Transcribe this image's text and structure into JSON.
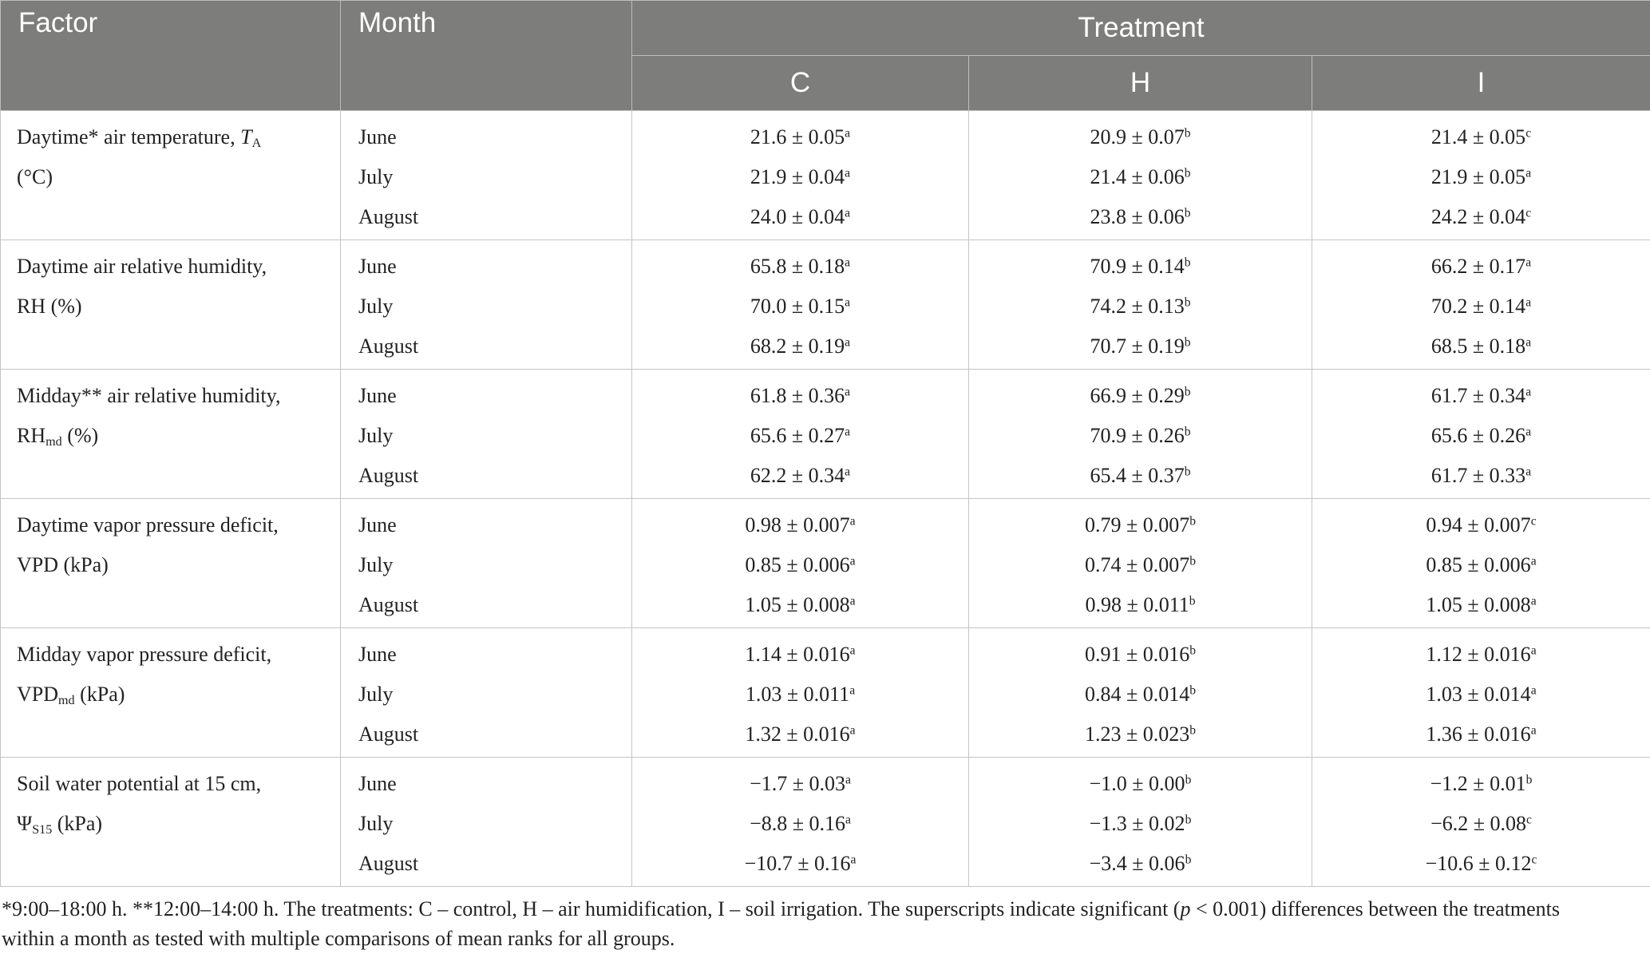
{
  "header": {
    "factor": "Factor",
    "month": "Month",
    "treatment": "Treatment",
    "columns": [
      "C",
      "H",
      "I"
    ]
  },
  "groups": [
    {
      "factor": [
        [
          {
            "t": "Daytime* air temperature, "
          },
          {
            "i": "T"
          },
          {
            "sub": "A"
          }
        ],
        [
          {
            "t": "(°C)"
          }
        ]
      ],
      "rows": [
        {
          "month": "June",
          "cells": [
            {
              "value": "21.6 ± 0.05",
              "sig": "a"
            },
            {
              "value": "20.9 ± 0.07",
              "sig": "b"
            },
            {
              "value": "21.4 ± 0.05",
              "sig": "c"
            }
          ]
        },
        {
          "month": "July",
          "cells": [
            {
              "value": "21.9 ± 0.04",
              "sig": "a"
            },
            {
              "value": "21.4 ± 0.06",
              "sig": "b"
            },
            {
              "value": "21.9 ± 0.05",
              "sig": "a"
            }
          ]
        },
        {
          "month": "August",
          "cells": [
            {
              "value": "24.0 ± 0.04",
              "sig": "a"
            },
            {
              "value": "23.8 ± 0.06",
              "sig": "b"
            },
            {
              "value": "24.2 ± 0.04",
              "sig": "c"
            }
          ]
        }
      ]
    },
    {
      "factor": [
        [
          {
            "t": "Daytime air relative humidity,"
          }
        ],
        [
          {
            "t": "RH (%)"
          }
        ]
      ],
      "rows": [
        {
          "month": "June",
          "cells": [
            {
              "value": "65.8 ± 0.18",
              "sig": "a"
            },
            {
              "value": "70.9 ± 0.14",
              "sig": "b"
            },
            {
              "value": "66.2 ± 0.17",
              "sig": "a"
            }
          ]
        },
        {
          "month": "July",
          "cells": [
            {
              "value": "70.0 ± 0.15",
              "sig": "a"
            },
            {
              "value": "74.2 ± 0.13",
              "sig": "b"
            },
            {
              "value": "70.2 ± 0.14",
              "sig": "a"
            }
          ]
        },
        {
          "month": "August",
          "cells": [
            {
              "value": "68.2 ± 0.19",
              "sig": "a"
            },
            {
              "value": "70.7 ± 0.19",
              "sig": "b"
            },
            {
              "value": "68.5 ± 0.18",
              "sig": "a"
            }
          ]
        }
      ]
    },
    {
      "factor": [
        [
          {
            "t": "Midday** air relative humidity,"
          }
        ],
        [
          {
            "t": "RH"
          },
          {
            "sub": "md"
          },
          {
            "t": " (%)"
          }
        ]
      ],
      "rows": [
        {
          "month": "June",
          "cells": [
            {
              "value": "61.8 ± 0.36",
              "sig": "a"
            },
            {
              "value": "66.9 ± 0.29",
              "sig": "b"
            },
            {
              "value": "61.7 ± 0.34",
              "sig": "a"
            }
          ]
        },
        {
          "month": "July",
          "cells": [
            {
              "value": "65.6 ± 0.27",
              "sig": "a"
            },
            {
              "value": "70.9 ± 0.26",
              "sig": "b"
            },
            {
              "value": "65.6 ± 0.26",
              "sig": "a"
            }
          ]
        },
        {
          "month": "August",
          "cells": [
            {
              "value": "62.2 ± 0.34",
              "sig": "a"
            },
            {
              "value": "65.4 ± 0.37",
              "sig": "b"
            },
            {
              "value": "61.7 ± 0.33",
              "sig": "a"
            }
          ]
        }
      ]
    },
    {
      "factor": [
        [
          {
            "t": "Daytime vapor pressure deficit,"
          }
        ],
        [
          {
            "t": "VPD (kPa)"
          }
        ]
      ],
      "rows": [
        {
          "month": "June",
          "cells": [
            {
              "value": "0.98 ± 0.007",
              "sig": "a"
            },
            {
              "value": "0.79 ± 0.007",
              "sig": "b"
            },
            {
              "value": "0.94 ± 0.007",
              "sig": "c"
            }
          ]
        },
        {
          "month": "July",
          "cells": [
            {
              "value": "0.85 ± 0.006",
              "sig": "a"
            },
            {
              "value": "0.74 ± 0.007",
              "sig": "b"
            },
            {
              "value": "0.85 ± 0.006",
              "sig": "a"
            }
          ]
        },
        {
          "month": "August",
          "cells": [
            {
              "value": "1.05 ± 0.008",
              "sig": "a"
            },
            {
              "value": "0.98 ± 0.011",
              "sig": "b"
            },
            {
              "value": "1.05 ± 0.008",
              "sig": "a"
            }
          ]
        }
      ]
    },
    {
      "factor": [
        [
          {
            "t": "Midday vapor pressure deficit,"
          }
        ],
        [
          {
            "t": "VPD"
          },
          {
            "sub": "md"
          },
          {
            "t": " (kPa)"
          }
        ]
      ],
      "rows": [
        {
          "month": "June",
          "cells": [
            {
              "value": "1.14 ± 0.016",
              "sig": "a"
            },
            {
              "value": "0.91 ± 0.016",
              "sig": "b"
            },
            {
              "value": "1.12 ± 0.016",
              "sig": "a"
            }
          ]
        },
        {
          "month": "July",
          "cells": [
            {
              "value": "1.03 ± 0.011",
              "sig": "a"
            },
            {
              "value": "0.84 ± 0.014",
              "sig": "b"
            },
            {
              "value": "1.03 ± 0.014",
              "sig": "a"
            }
          ]
        },
        {
          "month": "August",
          "cells": [
            {
              "value": "1.32 ± 0.016",
              "sig": "a"
            },
            {
              "value": "1.23 ± 0.023",
              "sig": "b"
            },
            {
              "value": "1.36 ± 0.016",
              "sig": "a"
            }
          ]
        }
      ]
    },
    {
      "factor": [
        [
          {
            "t": "Soil water potential at 15 cm,"
          }
        ],
        [
          {
            "t": "Ψ"
          },
          {
            "sub": "S15"
          },
          {
            "t": " (kPa)"
          }
        ]
      ],
      "rows": [
        {
          "month": "June",
          "cells": [
            {
              "value": "−1.7 ± 0.03",
              "sig": "a"
            },
            {
              "value": "−1.0 ± 0.00",
              "sig": "b"
            },
            {
              "value": "−1.2 ± 0.01",
              "sig": "b"
            }
          ]
        },
        {
          "month": "July",
          "cells": [
            {
              "value": "−8.8 ± 0.16",
              "sig": "a"
            },
            {
              "value": "−1.3 ± 0.02",
              "sig": "b"
            },
            {
              "value": "−6.2 ± 0.08",
              "sig": "c"
            }
          ]
        },
        {
          "month": "August",
          "cells": [
            {
              "value": "−10.7 ± 0.16",
              "sig": "a"
            },
            {
              "value": "−3.4 ± 0.06",
              "sig": "b"
            },
            {
              "value": "−10.6 ± 0.12",
              "sig": "c"
            }
          ]
        }
      ]
    }
  ],
  "footnote": [
    [
      {
        "t": "*9:00–18:00 h. **12:00–14:00 h. The treatments: C – control, H – air humidification, I – soil irrigation. The superscripts indicate significant ("
      },
      {
        "i": "p"
      },
      {
        "t": " < 0.001) differences between the treatments"
      }
    ],
    [
      {
        "t": "within a month as tested with multiple comparisons of mean ranks for all groups."
      }
    ]
  ]
}
